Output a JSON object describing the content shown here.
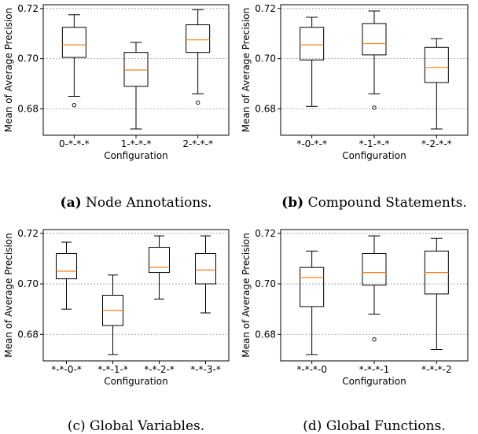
{
  "chart_data": [
    {
      "type": "box",
      "caption_label": "(a)",
      "caption_text": "Node Annotations.",
      "caption_bold": true,
      "xlabel": "Configuration",
      "ylabel": "Mean of Average Precision",
      "yticks": [
        "0.68",
        "0.70",
        "0.72"
      ],
      "ylim": [
        0.6695,
        0.7215
      ],
      "categories": [
        "0-*-*-*",
        "1-*-*-*",
        "2-*-*-*"
      ],
      "boxes": [
        {
          "whislo": 0.685,
          "q1": 0.7005,
          "med": 0.7055,
          "q3": 0.7125,
          "whishi": 0.7175,
          "fliers": [
            0.6815
          ]
        },
        {
          "whislo": 0.672,
          "q1": 0.689,
          "med": 0.6955,
          "q3": 0.7025,
          "whishi": 0.7065,
          "fliers": []
        },
        {
          "whislo": 0.686,
          "q1": 0.7025,
          "med": 0.7075,
          "q3": 0.7135,
          "whishi": 0.7195,
          "fliers": [
            0.6825
          ]
        }
      ]
    },
    {
      "type": "box",
      "caption_label": "(b)",
      "caption_text": "Compound Statements.",
      "caption_bold": true,
      "xlabel": "Configuration",
      "ylabel": "Mean of Average Precision",
      "yticks": [
        "0.68",
        "0.70",
        "0.72"
      ],
      "ylim": [
        0.6695,
        0.7215
      ],
      "categories": [
        "*-0-*-*",
        "*-1-*-*",
        "*-2-*-*"
      ],
      "boxes": [
        {
          "whislo": 0.681,
          "q1": 0.6995,
          "med": 0.7055,
          "q3": 0.7125,
          "whishi": 0.7165,
          "fliers": []
        },
        {
          "whislo": 0.686,
          "q1": 0.7015,
          "med": 0.706,
          "q3": 0.714,
          "whishi": 0.719,
          "fliers": [
            0.6805
          ]
        },
        {
          "whislo": 0.672,
          "q1": 0.6905,
          "med": 0.6965,
          "q3": 0.7045,
          "whishi": 0.708,
          "fliers": []
        }
      ]
    },
    {
      "type": "box",
      "caption_label": "(c)",
      "caption_text": "Global Variables.",
      "caption_bold": false,
      "xlabel": "Configuration",
      "ylabel": "Mean of Average Precision",
      "yticks": [
        "0.68",
        "0.70",
        "0.72"
      ],
      "ylim": [
        0.6695,
        0.7215
      ],
      "categories": [
        "*-*-0-*",
        "*-*-1-*",
        "*-*-2-*",
        "*-*-3-*"
      ],
      "boxes": [
        {
          "whislo": 0.69,
          "q1": 0.702,
          "med": 0.705,
          "q3": 0.712,
          "whishi": 0.7165,
          "fliers": []
        },
        {
          "whislo": 0.672,
          "q1": 0.6835,
          "med": 0.6895,
          "q3": 0.6955,
          "whishi": 0.7035,
          "fliers": []
        },
        {
          "whislo": 0.694,
          "q1": 0.7045,
          "med": 0.7065,
          "q3": 0.7145,
          "whishi": 0.719,
          "fliers": []
        },
        {
          "whislo": 0.6885,
          "q1": 0.7,
          "med": 0.7055,
          "q3": 0.712,
          "whishi": 0.719,
          "fliers": []
        }
      ]
    },
    {
      "type": "box",
      "caption_label": "(d)",
      "caption_text": "Global Functions.",
      "caption_bold": false,
      "xlabel": "Configuration",
      "ylabel": "Mean of Average Precision",
      "yticks": [
        "0.68",
        "0.70",
        "0.72"
      ],
      "ylim": [
        0.6695,
        0.7215
      ],
      "categories": [
        "*-*-*-0",
        "*-*-*-1",
        "*-*-*-2"
      ],
      "boxes": [
        {
          "whislo": 0.672,
          "q1": 0.691,
          "med": 0.7025,
          "q3": 0.7065,
          "whishi": 0.713,
          "fliers": []
        },
        {
          "whislo": 0.688,
          "q1": 0.6995,
          "med": 0.7045,
          "q3": 0.712,
          "whishi": 0.719,
          "fliers": [
            0.678
          ]
        },
        {
          "whislo": 0.674,
          "q1": 0.696,
          "med": 0.7045,
          "q3": 0.713,
          "whishi": 0.718,
          "fliers": []
        }
      ]
    }
  ],
  "colors": {
    "median": "#ff7f0e",
    "grid": "#999999",
    "box": "#000000"
  }
}
